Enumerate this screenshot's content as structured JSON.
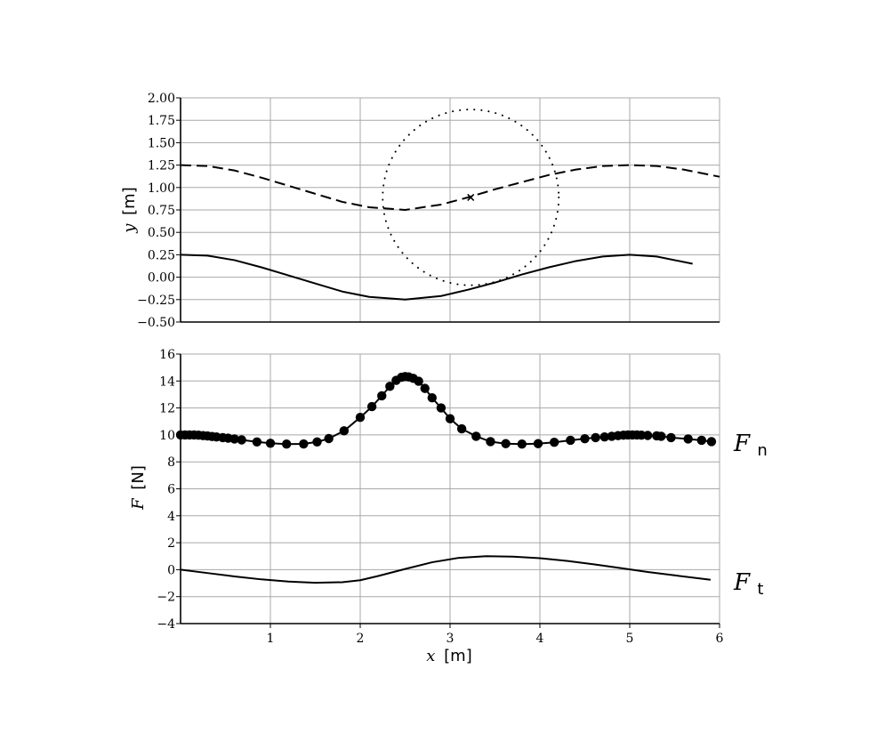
{
  "chart_data": [
    {
      "type": "line",
      "ylabel_var": "y",
      "ylabel_unit": "[m]",
      "xlim": [
        0,
        6
      ],
      "ylim": [
        -0.5,
        2.0
      ],
      "y_ticks": [
        -0.5,
        -0.25,
        0.0,
        0.25,
        0.5,
        0.75,
        1.0,
        1.25,
        1.5,
        1.75,
        2.0
      ],
      "y_tick_labels": [
        "−0.50",
        "−0.25",
        "0.00",
        "0.25",
        "0.50",
        "0.75",
        "1.00",
        "1.25",
        "1.50",
        "1.75",
        "2.00"
      ],
      "x_ticks": [
        1,
        2,
        3,
        4,
        5,
        6
      ],
      "grid": true,
      "series": [
        {
          "style": "solid",
          "x": [
            0.0,
            0.3,
            0.6,
            0.9,
            1.2,
            1.5,
            1.8,
            2.1,
            2.5,
            2.9,
            3.2,
            3.5,
            3.8,
            4.1,
            4.4,
            4.7,
            5.0,
            5.3,
            5.7
          ],
          "y": [
            0.25,
            0.24,
            0.19,
            0.11,
            0.02,
            -0.07,
            -0.16,
            -0.22,
            -0.25,
            -0.21,
            -0.14,
            -0.06,
            0.03,
            0.11,
            0.18,
            0.23,
            0.25,
            0.23,
            0.15
          ]
        },
        {
          "style": "dashed",
          "x": [
            0.0,
            0.3,
            0.6,
            0.9,
            1.2,
            1.5,
            1.8,
            2.1,
            2.5,
            2.9,
            3.2,
            3.5,
            3.8,
            4.1,
            4.4,
            4.7,
            5.0,
            5.3,
            5.6,
            6.0
          ],
          "y": [
            1.25,
            1.24,
            1.19,
            1.11,
            1.02,
            0.93,
            0.84,
            0.78,
            0.75,
            0.81,
            0.89,
            0.98,
            1.06,
            1.14,
            1.2,
            1.24,
            1.25,
            1.24,
            1.2,
            1.12
          ]
        },
        {
          "style": "dotted",
          "shape": "circle",
          "center": [
            3.23,
            0.89
          ],
          "radius": 0.98
        }
      ],
      "marker": {
        "symbol": "x",
        "x": 3.23,
        "y": 0.89
      }
    },
    {
      "type": "line",
      "ylabel_var": "F",
      "ylabel_unit": "[N]",
      "xlabel_var": "x",
      "xlabel_unit": "[m]",
      "xlim": [
        0,
        6
      ],
      "ylim": [
        -4,
        16
      ],
      "y_ticks": [
        -4,
        -2,
        0,
        2,
        4,
        6,
        8,
        10,
        12,
        14,
        16
      ],
      "y_tick_labels": [
        "−4",
        "−2",
        "0",
        "2",
        "4",
        "6",
        "8",
        "10",
        "12",
        "14",
        "16"
      ],
      "x_ticks": [
        1,
        2,
        3,
        4,
        5,
        6
      ],
      "x_tick_labels": [
        "1",
        "2",
        "3",
        "4",
        "5",
        "6"
      ],
      "grid": true,
      "series": [
        {
          "label_main": "F",
          "label_sub": "n",
          "style": "solid-markers",
          "x": [
            0.0,
            0.05,
            0.1,
            0.15,
            0.2,
            0.25,
            0.3,
            0.35,
            0.4,
            0.47,
            0.53,
            0.6,
            0.68,
            0.85,
            1.0,
            1.18,
            1.37,
            1.52,
            1.65,
            1.82,
            2.0,
            2.13,
            2.24,
            2.33,
            2.4,
            2.46,
            2.5,
            2.54,
            2.59,
            2.65,
            2.72,
            2.8,
            2.9,
            3.0,
            3.13,
            3.29,
            3.45,
            3.62,
            3.8,
            3.98,
            4.16,
            4.34,
            4.5,
            4.62,
            4.72,
            4.8,
            4.87,
            4.93,
            4.98,
            5.03,
            5.08,
            5.13,
            5.2,
            5.3,
            5.35,
            5.46,
            5.65,
            5.8,
            5.91
          ],
          "y": [
            10.0,
            10.0,
            10.0,
            10.0,
            9.98,
            9.95,
            9.92,
            9.88,
            9.85,
            9.8,
            9.76,
            9.7,
            9.63,
            9.48,
            9.38,
            9.32,
            9.33,
            9.48,
            9.73,
            10.3,
            11.3,
            12.1,
            12.9,
            13.6,
            14.05,
            14.28,
            14.33,
            14.3,
            14.2,
            13.98,
            13.45,
            12.75,
            12.0,
            11.2,
            10.45,
            9.9,
            9.5,
            9.35,
            9.32,
            9.35,
            9.45,
            9.6,
            9.72,
            9.8,
            9.85,
            9.9,
            9.95,
            9.98,
            10.0,
            10.0,
            10.0,
            9.98,
            9.96,
            9.93,
            9.9,
            9.8,
            9.7,
            9.6,
            9.5
          ]
        },
        {
          "label_main": "F",
          "label_sub": "t",
          "style": "solid",
          "x": [
            0.0,
            0.3,
            0.6,
            0.9,
            1.2,
            1.5,
            1.8,
            2.0,
            2.2,
            2.5,
            2.8,
            3.1,
            3.4,
            3.7,
            4.0,
            4.3,
            4.6,
            4.9,
            5.2,
            5.5,
            5.9
          ],
          "y": [
            0.0,
            -0.25,
            -0.5,
            -0.72,
            -0.88,
            -0.97,
            -0.93,
            -0.78,
            -0.47,
            0.05,
            0.55,
            0.88,
            1.0,
            0.97,
            0.85,
            0.65,
            0.4,
            0.12,
            -0.17,
            -0.42,
            -0.75
          ]
        }
      ]
    }
  ]
}
